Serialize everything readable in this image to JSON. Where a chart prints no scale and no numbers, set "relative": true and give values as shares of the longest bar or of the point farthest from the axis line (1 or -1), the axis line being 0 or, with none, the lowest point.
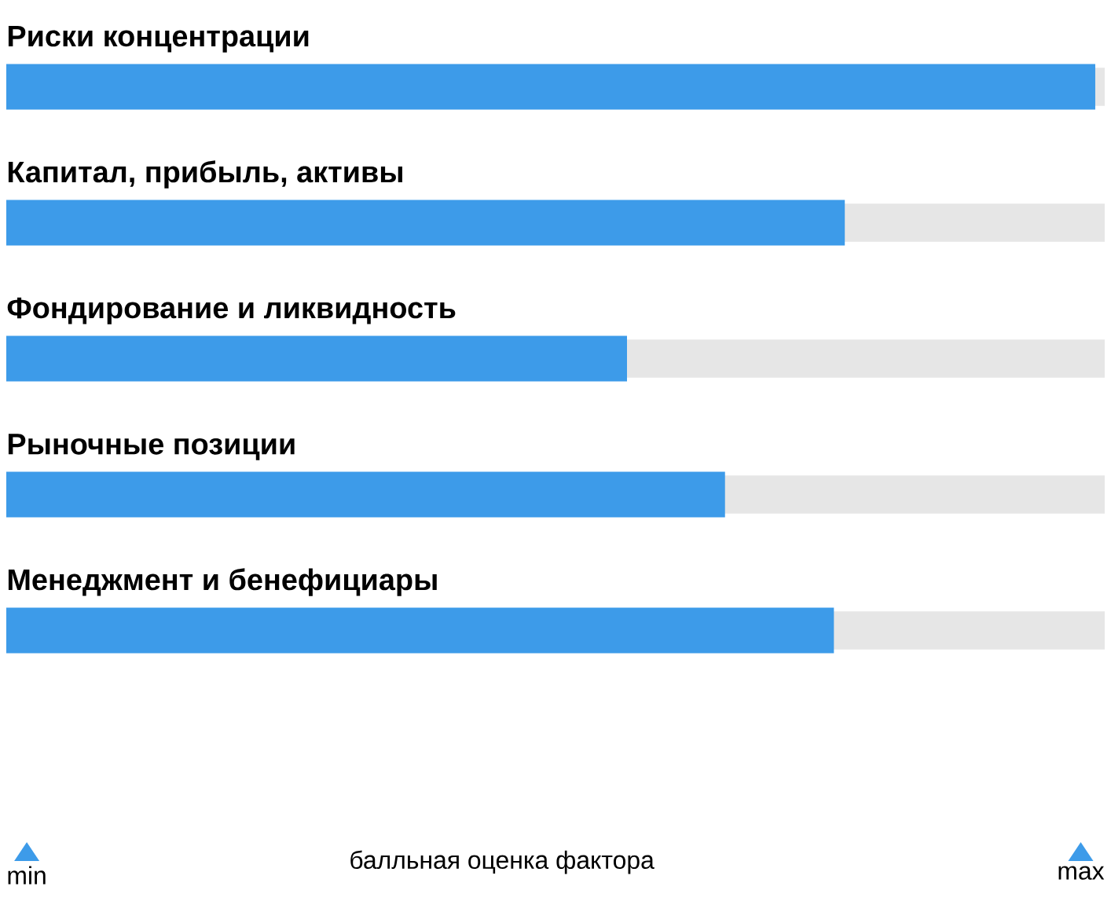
{
  "chart_data": {
    "type": "bar",
    "orientation": "horizontal",
    "relative": true,
    "categories": [
      "Риски концентрации",
      "Капитал, прибыль, активы",
      "Фондирование и ликвидность",
      "Рыночные позиции",
      "Менеджмент и бенефициары"
    ],
    "values": [
      1,
      0.77,
      0.57,
      0.66,
      0.76
    ],
    "color": "#3d9be9",
    "annotations": [
      "min",
      "балльная оценка фактора",
      "max"
    ]
  }
}
